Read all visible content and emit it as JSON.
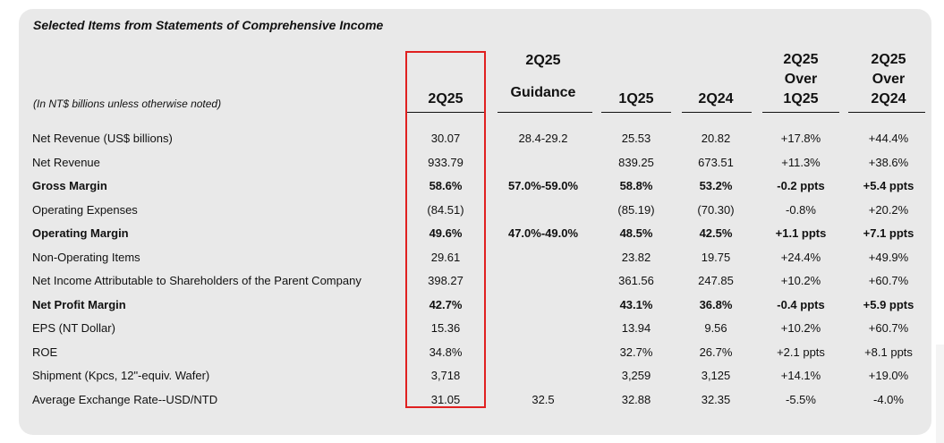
{
  "title": "Selected Items from Statements of Comprehensive Income",
  "note": "(In NT$ billions unless otherwise noted)",
  "columns": [
    {
      "lines": [
        "2Q25"
      ]
    },
    {
      "lines": [
        "2Q25",
        "Guidance"
      ]
    },
    {
      "lines": [
        "1Q25"
      ]
    },
    {
      "lines": [
        "2Q24"
      ]
    },
    {
      "lines": [
        "2Q25",
        "Over",
        "1Q25"
      ]
    },
    {
      "lines": [
        "2Q25",
        "Over",
        "2Q24"
      ]
    }
  ],
  "rows": [
    {
      "label": "Net Revenue (US$ billions)",
      "bold": false,
      "values": [
        "30.07",
        "28.4-29.2",
        "25.53",
        "20.82",
        "+17.8%",
        "+44.4%"
      ]
    },
    {
      "label": "Net Revenue",
      "bold": false,
      "values": [
        "933.79",
        "",
        "839.25",
        "673.51",
        "+11.3%",
        "+38.6%"
      ]
    },
    {
      "label": "Gross Margin",
      "bold": true,
      "values": [
        "58.6%",
        "57.0%-59.0%",
        "58.8%",
        "53.2%",
        "-0.2 ppts",
        "+5.4 ppts"
      ]
    },
    {
      "label": "Operating Expenses",
      "bold": false,
      "values": [
        "(84.51)",
        "",
        "(85.19)",
        "(70.30)",
        "-0.8%",
        "+20.2%"
      ]
    },
    {
      "label": "Operating Margin",
      "bold": true,
      "values": [
        "49.6%",
        "47.0%-49.0%",
        "48.5%",
        "42.5%",
        "+1.1 ppts",
        "+7.1 ppts"
      ]
    },
    {
      "label": "Non-Operating Items",
      "bold": false,
      "values": [
        "29.61",
        "",
        "23.82",
        "19.75",
        "+24.4%",
        "+49.9%"
      ]
    },
    {
      "label": "Net Income Attributable to Shareholders of the Parent Company",
      "bold": false,
      "values": [
        "398.27",
        "",
        "361.56",
        "247.85",
        "+10.2%",
        "+60.7%"
      ]
    },
    {
      "label": "Net Profit Margin",
      "bold": true,
      "values": [
        "42.7%",
        "",
        "43.1%",
        "36.8%",
        "-0.4 ppts",
        "+5.9 ppts"
      ]
    },
    {
      "label": "EPS (NT Dollar)",
      "bold": false,
      "values": [
        "15.36",
        "",
        "13.94",
        "9.56",
        "+10.2%",
        "+60.7%"
      ]
    },
    {
      "label": "ROE",
      "bold": false,
      "values": [
        "34.8%",
        "",
        "32.7%",
        "26.7%",
        "+2.1 ppts",
        "+8.1 ppts"
      ]
    },
    {
      "label": "Shipment (Kpcs, 12\"-equiv. Wafer)",
      "bold": false,
      "values": [
        "3,718",
        "",
        "3,259",
        "3,125",
        "+14.1%",
        "+19.0%"
      ]
    },
    {
      "label": "Average Exchange Rate--USD/NTD",
      "bold": false,
      "values": [
        "31.05",
        "32.5",
        "32.88",
        "32.35",
        "-5.5%",
        "-4.0%"
      ]
    }
  ],
  "colors": {
    "card": "#e9e9e9",
    "highlight": "#e02020"
  }
}
